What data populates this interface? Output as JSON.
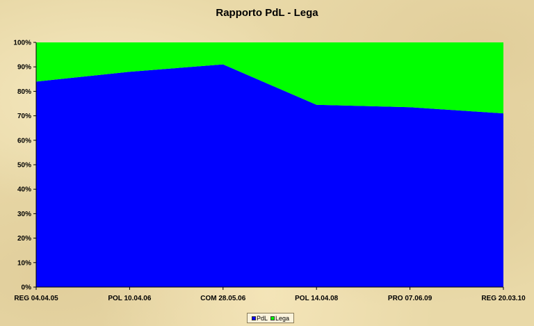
{
  "chart_data": {
    "type": "area",
    "stacked": "percent",
    "title": "Rapporto PdL - Lega",
    "categories": [
      "REG 04.04.05",
      "POL 10.04.06",
      "COM 28.05.06",
      "POL 14.04.08",
      "PRO 07.06.09",
      "REG 20.03.10"
    ],
    "series": [
      {
        "name": "PdL",
        "color": "#0000ff",
        "values": [
          84,
          88,
          91,
          74.5,
          73.5,
          71
        ]
      },
      {
        "name": "Lega",
        "color": "#00ff00",
        "values": [
          16,
          12,
          9,
          25.5,
          26.5,
          29
        ]
      }
    ],
    "yticks": [
      "0%",
      "10%",
      "20%",
      "30%",
      "40%",
      "50%",
      "60%",
      "70%",
      "80%",
      "90%",
      "100%"
    ],
    "ylim": [
      0,
      100
    ],
    "grid": false,
    "legend_position": "bottom"
  }
}
